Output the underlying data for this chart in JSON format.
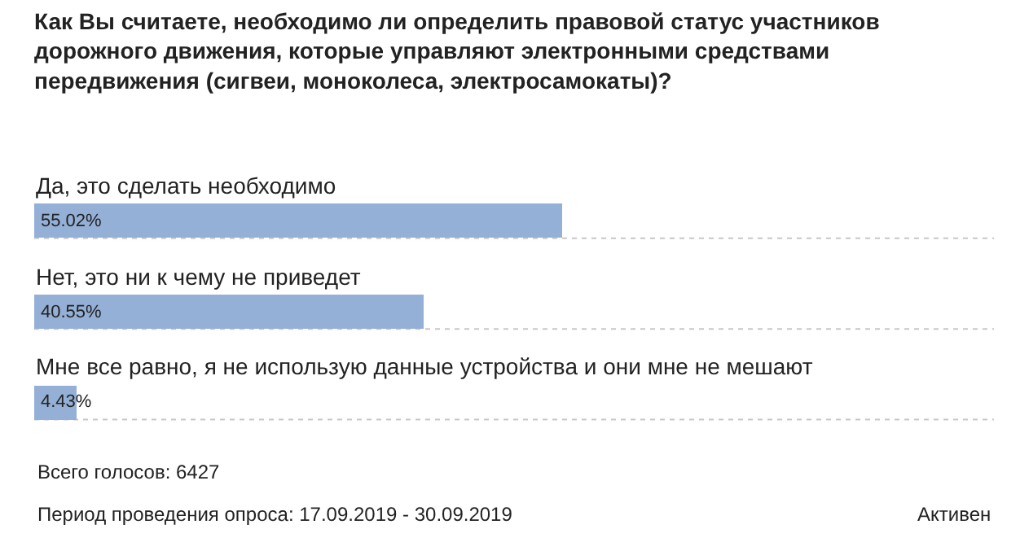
{
  "chart_data": {
    "type": "bar",
    "orientation": "horizontal",
    "title": "Как Вы считаете, необходимо ли определить правовой статус участников дорожного движения, которые управляют электронными средствами передвижения (сигвеи, моноколеса, электросамокаты)?",
    "categories": [
      "Да, это сделать необходимо",
      "Нет, это ни к чему не приведет",
      "Мне все равно, я не использую данные устройства и они мне не мешают"
    ],
    "values": [
      55.02,
      40.55,
      4.43
    ],
    "value_labels": [
      "55.02%",
      "40.55%",
      "4.43%"
    ],
    "color": "#95b0d6",
    "xlim": [
      0,
      100
    ],
    "tick_labels": false,
    "legend": false,
    "annotations": [
      "Всего голосов: 6427",
      "Период проведения опроса: 17.09.2019 - 30.09.2019",
      "Активен"
    ]
  }
}
